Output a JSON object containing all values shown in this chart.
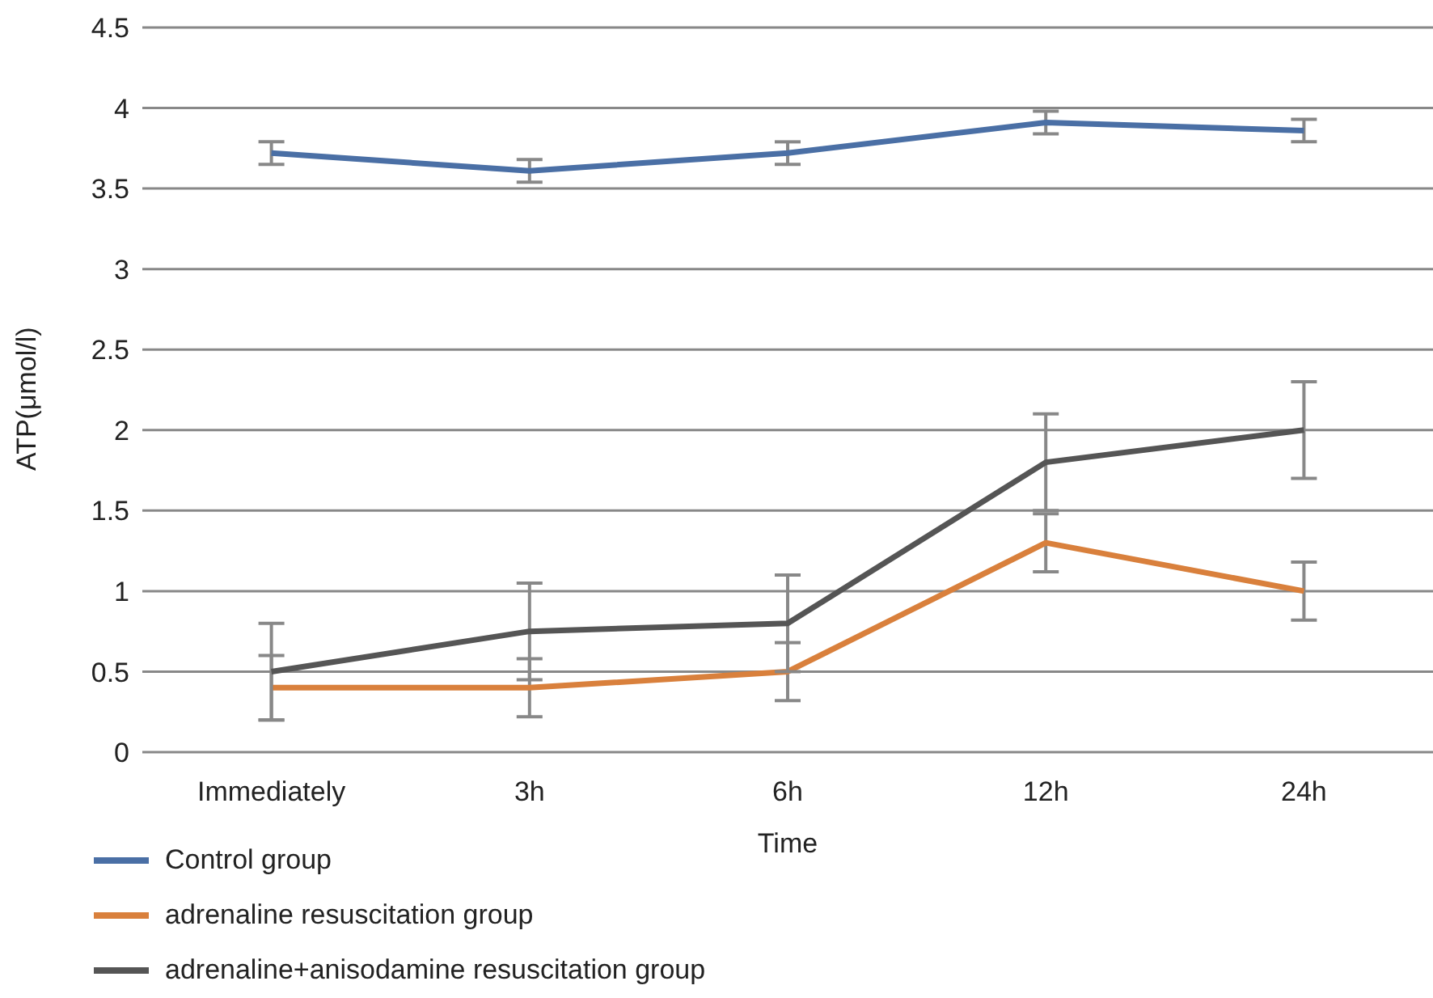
{
  "chart_data": {
    "type": "line",
    "xlabel": "Time",
    "ylabel": "ATP(μmol/l)",
    "categories": [
      "Immediately",
      "3h",
      "6h",
      "12h",
      "24h"
    ],
    "series": [
      {
        "name": "Control group",
        "color": "#4a6fa5",
        "values": [
          3.72,
          3.61,
          3.72,
          3.91,
          3.86
        ],
        "errors": [
          0.07,
          0.07,
          0.07,
          0.07,
          0.07
        ]
      },
      {
        "name": "adrenaline resuscitation group",
        "color": "#d9803c",
        "values": [
          0.4,
          0.4,
          0.5,
          1.3,
          1.0
        ],
        "errors": [
          0.2,
          0.18,
          0.18,
          0.18,
          0.18
        ]
      },
      {
        "name": "adrenaline+anisodamine resuscitation group",
        "color": "#555555",
        "values": [
          0.5,
          0.75,
          0.8,
          1.8,
          2.0
        ],
        "errors": [
          0.3,
          0.3,
          0.3,
          0.3,
          0.3
        ]
      }
    ],
    "ylim": [
      0,
      4.5
    ],
    "yticks": [
      0,
      0.5,
      1,
      1.5,
      2,
      2.5,
      3,
      3.5,
      4,
      4.5
    ],
    "grid": "y",
    "legend": "bottom left",
    "marker": "none",
    "line_style": "solid"
  }
}
